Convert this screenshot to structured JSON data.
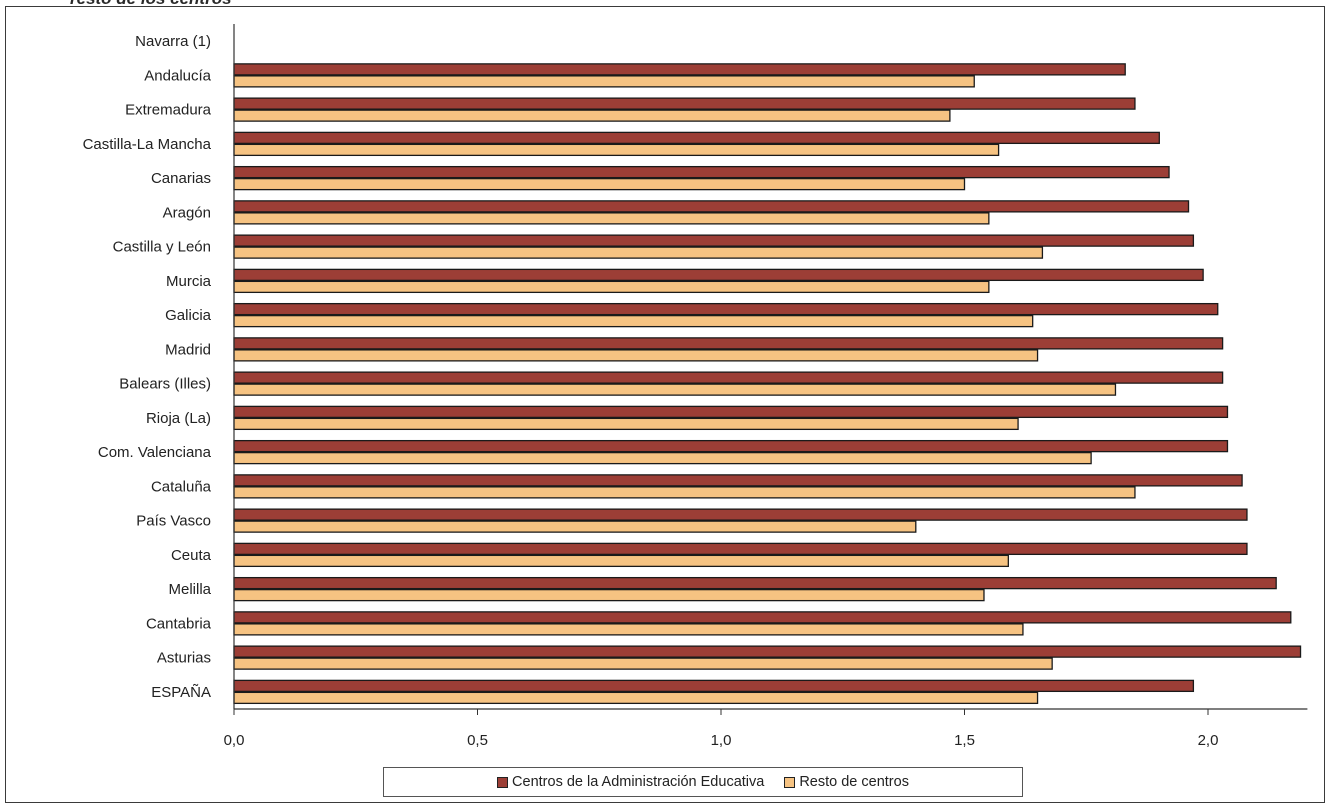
{
  "title_fragment": "resto de los centros",
  "colors": {
    "series_admin": "#9c3e36",
    "series_resto": "#f6c382",
    "axis": "#333333",
    "frame": "#3a3a3a"
  },
  "chart_data": {
    "type": "bar",
    "orientation": "horizontal",
    "categories": [
      "Navarra (1)",
      "Andalucía",
      "Extremadura",
      "Castilla-La Mancha",
      "Canarias",
      "Aragón",
      "Castilla y León",
      "Murcia",
      "Galicia",
      "Madrid",
      "Balears (Illes)",
      "Rioja (La)",
      "Com. Valenciana",
      "Cataluña",
      "País Vasco",
      "Ceuta",
      "Melilla",
      "Cantabria",
      "Asturias",
      "ESPAÑA"
    ],
    "series": [
      {
        "name": "Centros de la Administración Educativa",
        "values": [
          null,
          1.83,
          1.85,
          1.9,
          1.92,
          1.96,
          1.97,
          1.99,
          2.02,
          2.03,
          2.03,
          2.04,
          2.04,
          2.07,
          2.08,
          2.08,
          2.14,
          2.17,
          2.19,
          1.97
        ],
        "color": "#9c3e36"
      },
      {
        "name": "Resto de centros",
        "values": [
          null,
          1.52,
          1.47,
          1.57,
          1.5,
          1.55,
          1.66,
          1.55,
          1.64,
          1.65,
          1.81,
          1.61,
          1.76,
          1.85,
          1.4,
          1.59,
          1.54,
          1.62,
          1.68,
          1.65
        ],
        "color": "#f6c382"
      }
    ],
    "x_ticks": [
      "0,0",
      "0,5",
      "1,0",
      "1,5",
      "2,0"
    ],
    "xlim": [
      0,
      2.2
    ],
    "title": "",
    "xlabel": "",
    "ylabel": "",
    "grid": false,
    "legend_position": "bottom"
  }
}
